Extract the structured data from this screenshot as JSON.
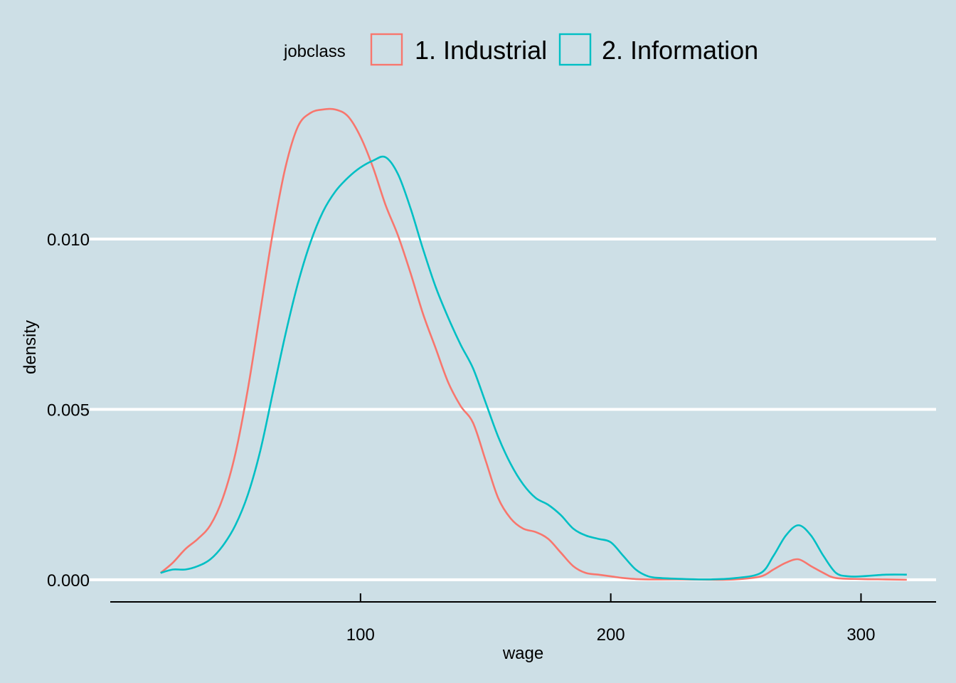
{
  "chart_data": {
    "type": "area",
    "xlabel": "wage",
    "ylabel": "density",
    "xlim": [
      0,
      330
    ],
    "ylim": [
      -0.00065,
      0.0143
    ],
    "x_ticks": [
      100,
      200,
      300
    ],
    "x_tick_labels": [
      "100",
      "200",
      "300"
    ],
    "y_ticks": [
      0.0,
      0.005,
      0.01
    ],
    "y_tick_labels": [
      "0.000",
      "0.005",
      "0.010"
    ],
    "grid": "horizontal-major",
    "legend": {
      "title": "jobclass",
      "position": "top"
    },
    "background_color": "#cddfe6",
    "series": [
      {
        "name": "1. Industrial",
        "color": "#f8766d",
        "x": [
          20.1,
          25,
          30,
          35,
          40,
          45,
          50,
          55,
          60,
          65,
          70,
          75,
          80,
          85,
          90,
          95,
          100,
          105,
          110,
          115,
          120,
          125,
          130,
          135,
          140,
          145,
          150,
          155,
          160,
          165,
          170,
          175,
          180,
          185,
          190,
          195,
          200,
          205,
          210,
          215,
          220,
          230,
          240,
          250,
          260,
          265,
          270,
          275,
          280,
          285,
          290,
          300,
          310,
          318.3
        ],
        "y": [
          0.0002,
          0.0005,
          0.0009,
          0.0012,
          0.0016,
          0.0024,
          0.0037,
          0.0056,
          0.0079,
          0.0102,
          0.0121,
          0.0133,
          0.0137,
          0.0138,
          0.0138,
          0.0136,
          0.013,
          0.0121,
          0.011,
          0.0101,
          0.009,
          0.0078,
          0.0068,
          0.0058,
          0.0051,
          0.0046,
          0.0035,
          0.0024,
          0.0018,
          0.0015,
          0.0014,
          0.0012,
          0.0008,
          0.0004,
          0.0002,
          0.00015,
          0.0001,
          5e-05,
          2e-05,
          1e-05,
          1e-05,
          1e-05,
          0.0,
          1e-05,
          0.0001,
          0.0003,
          0.0005,
          0.0006,
          0.0004,
          0.0002,
          5e-05,
          2e-05,
          1e-05,
          0.0
        ]
      },
      {
        "name": "2. Information",
        "color": "#00bfc4",
        "x": [
          20.1,
          25,
          30,
          35,
          40,
          45,
          50,
          55,
          60,
          65,
          70,
          75,
          80,
          85,
          90,
          95,
          100,
          105,
          110,
          115,
          120,
          125,
          130,
          135,
          140,
          145,
          150,
          155,
          160,
          165,
          170,
          175,
          180,
          185,
          190,
          195,
          200,
          205,
          210,
          215,
          220,
          230,
          240,
          250,
          260,
          265,
          270,
          275,
          280,
          285,
          290,
          295,
          300,
          310,
          318.3
        ],
        "y": [
          0.0002,
          0.0003,
          0.0003,
          0.0004,
          0.0006,
          0.001,
          0.0016,
          0.0025,
          0.0038,
          0.0055,
          0.0072,
          0.0087,
          0.0099,
          0.0108,
          0.0114,
          0.0118,
          0.0121,
          0.0123,
          0.0124,
          0.0119,
          0.0109,
          0.0097,
          0.0086,
          0.0077,
          0.0069,
          0.0062,
          0.0052,
          0.0042,
          0.0034,
          0.0028,
          0.0024,
          0.0022,
          0.0019,
          0.0015,
          0.0013,
          0.0012,
          0.0011,
          0.0007,
          0.0003,
          0.0001,
          5e-05,
          2e-05,
          1e-05,
          5e-05,
          0.0002,
          0.0007,
          0.0013,
          0.0016,
          0.0013,
          0.0007,
          0.0002,
          0.0001,
          0.0001,
          0.00015,
          0.00015
        ]
      }
    ]
  }
}
